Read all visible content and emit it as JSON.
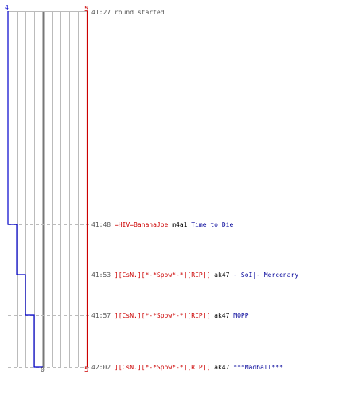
{
  "colors": {
    "team_blue": "#0000cc",
    "team_red": "#cc0000",
    "grid": "#bbbbbb",
    "zero_line": "#777777",
    "dashed": "#bbbbbb"
  },
  "scale": {
    "blue_top_label": "4",
    "red_top_label": "5",
    "red_bottom_label": "5",
    "zero_label": "0"
  },
  "events": [
    {
      "time": "41:27",
      "text": "round started"
    },
    {
      "time": "41:48",
      "killer": "=HIV=BananaJoe",
      "weapon": "m4a1",
      "victim": "Time to Die"
    },
    {
      "time": "41:53",
      "killer": "][CsN.][*-*Spow*-*][RIP][",
      "weapon": "ak47",
      "victim": "-|SoI|- Mercenary"
    },
    {
      "time": "41:57",
      "killer": "][CsN.][*-*Spow*-*][RIP][",
      "weapon": "ak47",
      "victim": "MOPP"
    },
    {
      "time": "42:02",
      "killer": "][CsN.][*-*Spow*-*][RIP][",
      "weapon": "ak47",
      "victim": "***Madball***"
    }
  ]
}
